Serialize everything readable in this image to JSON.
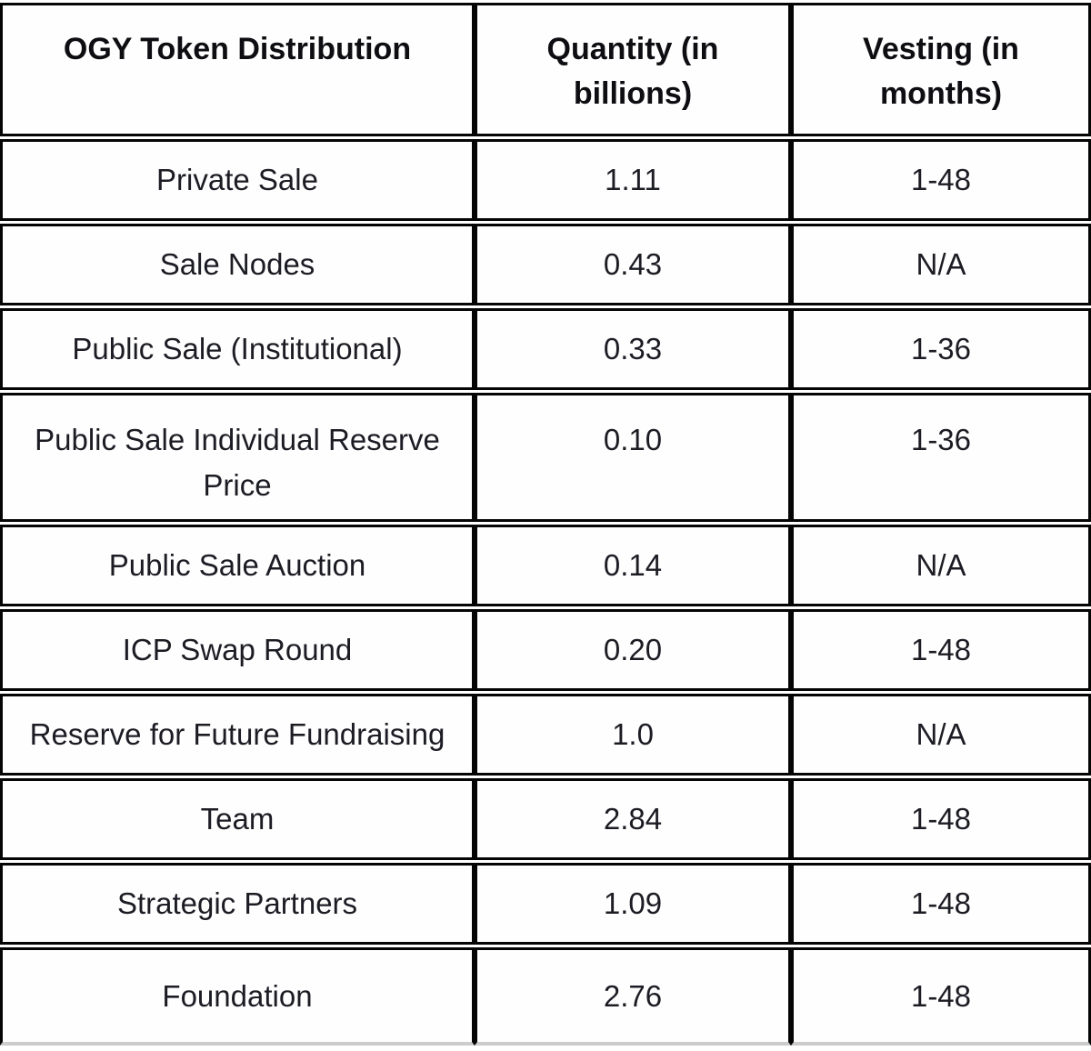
{
  "table": {
    "columns": [
      {
        "label": "OGY Token Distribution"
      },
      {
        "label": "Quantity (in billions)"
      },
      {
        "label": "Vesting (in months)"
      }
    ],
    "rows": [
      {
        "category": "Private Sale",
        "quantity": "1.11",
        "vesting": "1-48"
      },
      {
        "category": "Sale Nodes",
        "quantity": "0.43",
        "vesting": "N/A"
      },
      {
        "category": "Public Sale (Institutional)",
        "quantity": "0.33",
        "vesting": "1-36"
      },
      {
        "category": "Public Sale Individual Reserve Price",
        "quantity": "0.10",
        "vesting": "1-36"
      },
      {
        "category": "Public Sale Auction",
        "quantity": "0.14",
        "vesting": "N/A"
      },
      {
        "category": "ICP Swap Round",
        "quantity": "0.20",
        "vesting": "1-48"
      },
      {
        "category": "Reserve for Future Fundraising",
        "quantity": "1.0",
        "vesting": "N/A"
      },
      {
        "category": "Team",
        "quantity": "2.84",
        "vesting": "1-48"
      },
      {
        "category": "Strategic Partners",
        "quantity": "1.09",
        "vesting": "1-48"
      },
      {
        "category": "Foundation",
        "quantity": "2.76",
        "vesting": "1-48"
      }
    ]
  },
  "colors": {
    "border": "#050505",
    "text": "#1c1c24",
    "header_text": "#0d0d12",
    "background": "#ffffff"
  }
}
